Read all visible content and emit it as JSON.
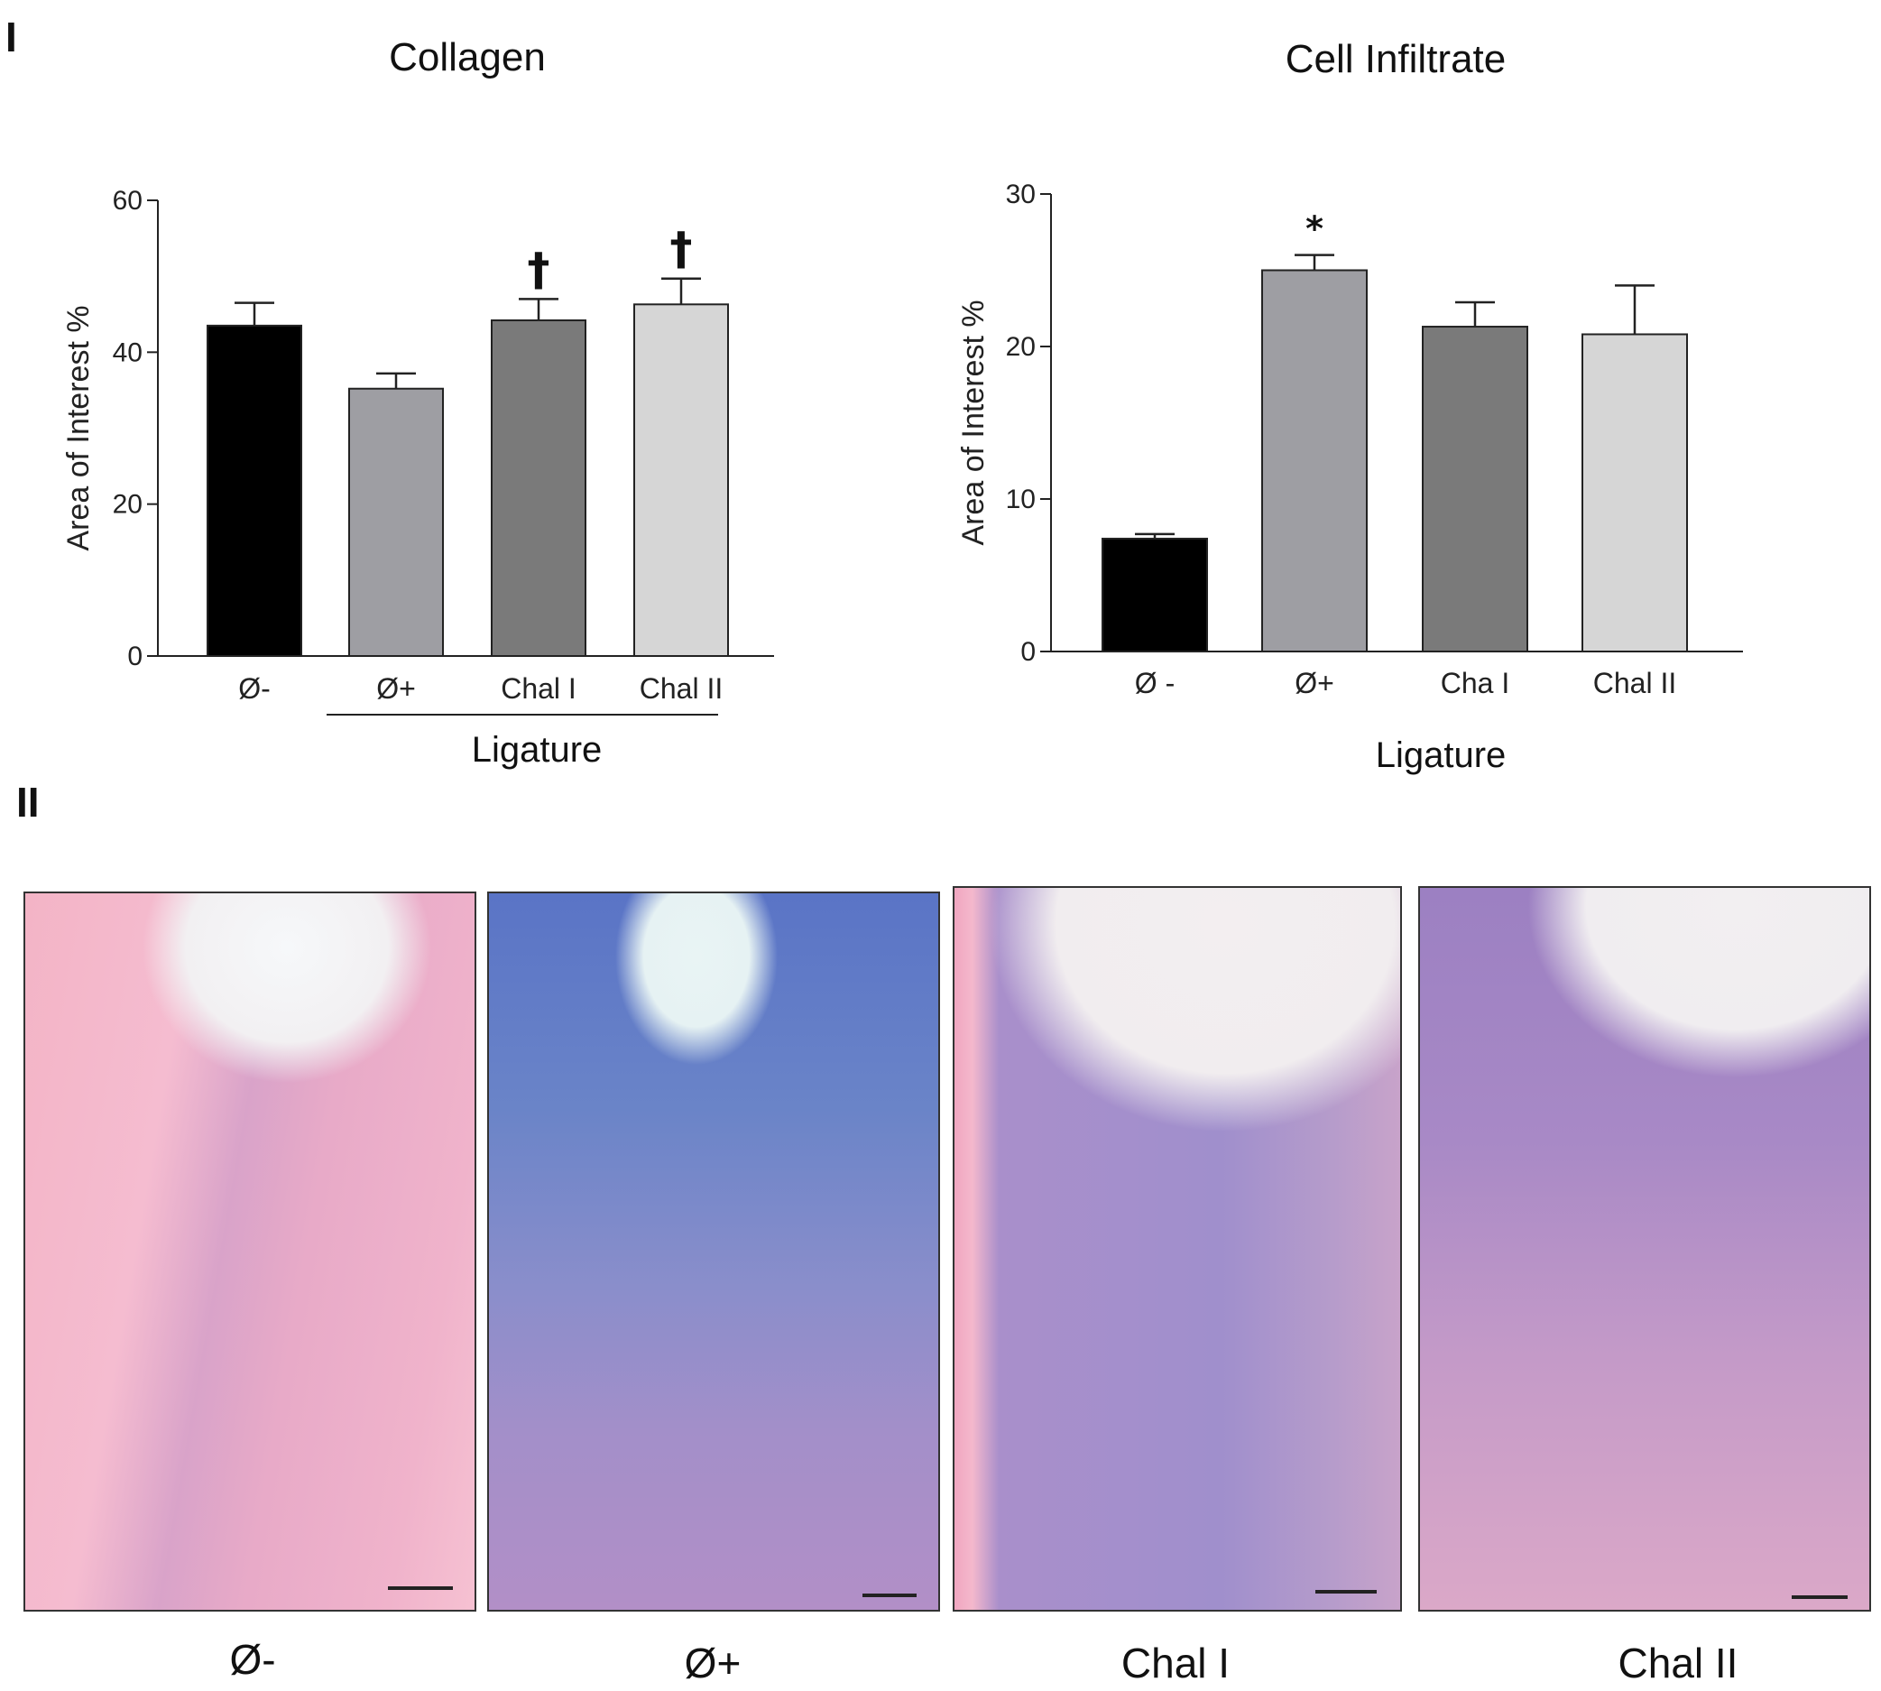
{
  "panels": {
    "top": "I",
    "bottom": "II"
  },
  "chart_data": [
    {
      "type": "bar",
      "title": "Collagen",
      "ylabel": "Area of Interest %",
      "categories": [
        "Ø-",
        "Ø+",
        "Chal I",
        "Chal II"
      ],
      "values": [
        43.5,
        35.2,
        44.2,
        46.3
      ],
      "errors": [
        3.0,
        2.0,
        2.8,
        3.4
      ],
      "ylim": [
        0,
        60
      ],
      "yticks": [
        "0",
        "20",
        "40",
        "60"
      ],
      "ytick_values": [
        0,
        20,
        40,
        60
      ],
      "colors": [
        "#000000",
        "#9e9ea3",
        "#7a7a7a",
        "#d6d6d6"
      ],
      "significance": [
        "",
        "",
        "†",
        "†"
      ],
      "group_label": "Ligature"
    },
    {
      "type": "bar",
      "title": "Cell Infiltrate",
      "ylabel": "Area of Interest %",
      "categories": [
        "Ø -",
        "Ø+",
        "Cha I",
        "Chal II"
      ],
      "values": [
        7.4,
        25.0,
        21.3,
        20.8
      ],
      "errors": [
        0.3,
        1.0,
        1.6,
        3.2
      ],
      "ylim": [
        0,
        30
      ],
      "yticks": [
        "0",
        "10",
        "20",
        "30"
      ],
      "ytick_values": [
        0,
        10,
        20,
        30
      ],
      "colors": [
        "#000000",
        "#9e9ea3",
        "#7a7a7a",
        "#d6d6d6"
      ],
      "significance": [
        "",
        "*",
        "",
        ""
      ],
      "group_label": "Ligature"
    }
  ],
  "micrographs": [
    {
      "caption": "Ø-",
      "stain": "pink-tissue"
    },
    {
      "caption": "Ø+",
      "stain": "blue-infiltrate"
    },
    {
      "caption": "Chal I",
      "stain": "purple-band"
    },
    {
      "caption": "Chal II",
      "stain": "dense-purple"
    }
  ]
}
